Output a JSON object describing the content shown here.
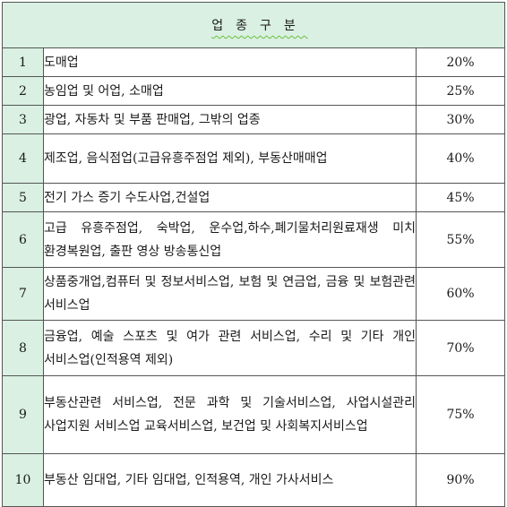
{
  "title": "업종구분",
  "rows": [
    {
      "no": "1",
      "name": "도매업",
      "rate": "20%"
    },
    {
      "no": "2",
      "name": "농임업 및 어업, 소매업",
      "rate": "25%"
    },
    {
      "no": "3",
      "name": "광업, 자동차 및 부품 판매업, 그밖의 업종",
      "rate": "30%"
    },
    {
      "no": "4",
      "name": "제조업, 음식점업(고급유흥주점업 제외), 부동산매매업",
      "rate": "40%"
    },
    {
      "no": "5",
      "name": "전기 가스 증기 수도사업,건설업",
      "rate": "45%"
    },
    {
      "no": "6",
      "name": "고급 유흥주점업, 숙박업, 운수업,하수,폐기물처리원료재생 미치 환경복원업, 출판 영상 방송통신업",
      "rate": "55%"
    },
    {
      "no": "7",
      "name": "상품중개업,컴퓨터 및 정보서비스업, 보험 및 연금업, 금융 및 보험관련 서비스업",
      "rate": "60%"
    },
    {
      "no": "8",
      "name": "금융업, 예술 스포츠 및 여가 관련 서비스업, 수리 및 기타 개인 서비스업(인적용역 제외)",
      "rate": "70%"
    },
    {
      "no": "9",
      "name": "부동산관련 서비스업, 전문 과학 및 기술서비스업, 사업시설관리 사업지원 서비스업 교육서비스업, 보건업 및 사회복지서비스업",
      "rate": "75%"
    },
    {
      "no": "10",
      "name": "부동산 임대업, 기타 임대업, 인적용역, 개인 가사서비스",
      "rate": "90%"
    }
  ]
}
